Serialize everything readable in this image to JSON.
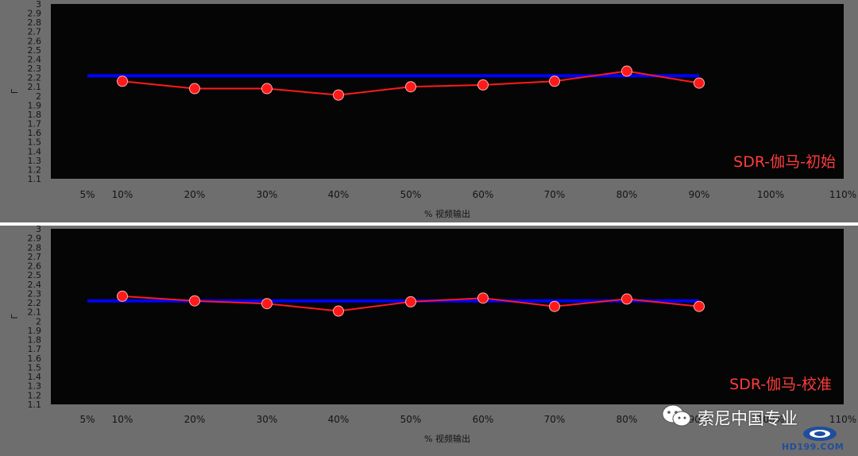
{
  "chart_data": [
    {
      "type": "line",
      "annotation": "SDR-伽马-初始",
      "ylabel": "Γ",
      "xlabel": "% 视频输出",
      "x_ticks": [
        "5%",
        "10%",
        "20%",
        "30%",
        "40%",
        "50%",
        "60%",
        "70%",
        "80%",
        "90%",
        "100%",
        "110%"
      ],
      "y_ticks": [
        "3",
        "2.9",
        "2.8",
        "2.7",
        "2.6",
        "2.5",
        "2.4",
        "2.3",
        "2.2",
        "2.1",
        "2",
        "1.9",
        "1.8",
        "1.7",
        "1.6",
        "1.5",
        "1.4",
        "1.3",
        "1.2",
        "1.1"
      ],
      "ylim": [
        1.1,
        3.0
      ],
      "xlim": [
        0,
        110
      ],
      "grid": false,
      "series": [
        {
          "color": "#0000ff",
          "x": [
            5,
            90
          ],
          "values": [
            2.22,
            2.22
          ]
        },
        {
          "color": "#ff1a1a",
          "x": [
            10,
            20,
            30,
            40,
            50,
            60,
            70,
            80,
            90
          ],
          "values": [
            2.16,
            2.08,
            2.08,
            2.01,
            2.1,
            2.12,
            2.16,
            2.27,
            2.14
          ]
        }
      ]
    },
    {
      "type": "line",
      "annotation": "SDR-伽马-校准",
      "ylabel": "Γ",
      "xlabel": "% 视频输出",
      "x_ticks": [
        "5%",
        "10%",
        "20%",
        "30%",
        "40%",
        "50%",
        "60%",
        "70%",
        "80%",
        "90%",
        "100%",
        "110%"
      ],
      "y_ticks": [
        "3",
        "2.9",
        "2.8",
        "2.7",
        "2.6",
        "2.5",
        "2.4",
        "2.3",
        "2.2",
        "2.1",
        "2",
        "1.9",
        "1.8",
        "1.7",
        "1.6",
        "1.5",
        "1.4",
        "1.3",
        "1.2",
        "1.1"
      ],
      "ylim": [
        1.1,
        3.0
      ],
      "xlim": [
        0,
        110
      ],
      "grid": false,
      "series": [
        {
          "color": "#0000ff",
          "x": [
            5,
            90
          ],
          "values": [
            2.22,
            2.22
          ]
        },
        {
          "color": "#ff1a1a",
          "x": [
            10,
            20,
            30,
            40,
            50,
            60,
            70,
            80,
            90
          ],
          "values": [
            2.27,
            2.22,
            2.19,
            2.11,
            2.21,
            2.25,
            2.16,
            2.24,
            2.16
          ]
        }
      ]
    }
  ],
  "watermark": {
    "text": "索尼中国专业",
    "site": "HD199.COM",
    "icon": "wechat-icon"
  }
}
